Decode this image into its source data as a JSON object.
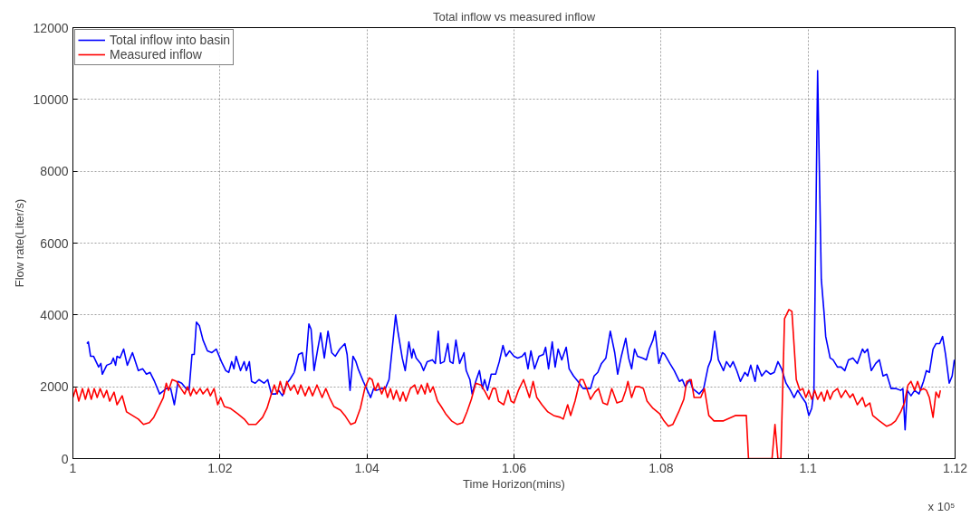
{
  "chart_data": {
    "type": "line",
    "title": "Total inflow vs measured inflow",
    "xlabel": "Time Horizon(mins)",
    "ylabel": "Flow rate(Liter/s)",
    "annotations": [
      "x 10⁵"
    ],
    "xlim": [
      1,
      1.12
    ],
    "xticks": [
      1,
      1.02,
      1.04,
      1.06,
      1.08,
      1.1,
      1.12
    ],
    "ylim": [
      0,
      12000
    ],
    "yticks": [
      0,
      2000,
      4000,
      6000,
      8000,
      10000,
      12000
    ],
    "grid": true,
    "legend": "top left",
    "line_style": "solid",
    "marker": "none",
    "series": [
      {
        "name": "Total inflow into basin",
        "color": "#0000ff",
        "x": [
          1.0019,
          1.0021,
          1.0024,
          1.0028,
          1.0035,
          1.0038,
          1.004,
          1.0046,
          1.0052,
          1.0055,
          1.0058,
          1.006,
          1.0064,
          1.0069,
          1.0074,
          1.0081,
          1.0089,
          1.0095,
          1.01,
          1.0105,
          1.0111,
          1.0118,
          1.0127,
          1.0133,
          1.0138,
          1.0143,
          1.0148,
          1.0154,
          1.0158,
          1.0162,
          1.0165,
          1.0168,
          1.0172,
          1.0177,
          1.0183,
          1.0189,
          1.0195,
          1.0202,
          1.0208,
          1.0212,
          1.0216,
          1.0219,
          1.0222,
          1.0228,
          1.0233,
          1.0236,
          1.024,
          1.0243,
          1.0248,
          1.0253,
          1.026,
          1.0265,
          1.027,
          1.0276,
          1.028,
          1.0285,
          1.0291,
          1.0295,
          1.0301,
          1.0307,
          1.0312,
          1.0316,
          1.0321,
          1.0324,
          1.0328,
          1.0333,
          1.0337,
          1.0342,
          1.0347,
          1.0352,
          1.0357,
          1.0363,
          1.037,
          1.0373,
          1.0377,
          1.0381,
          1.0385,
          1.0388,
          1.0395,
          1.0405,
          1.0409,
          1.0413,
          1.0419,
          1.0425,
          1.043,
          1.0435,
          1.0439,
          1.0442,
          1.0448,
          1.0452,
          1.0457,
          1.0461,
          1.0463,
          1.0467,
          1.0473,
          1.0477,
          1.0482,
          1.0489,
          1.0493,
          1.0497,
          1.05,
          1.0505,
          1.051,
          1.0513,
          1.0517,
          1.0521,
          1.0526,
          1.0532,
          1.0535,
          1.054,
          1.0543,
          1.0548,
          1.0553,
          1.0557,
          1.056,
          1.0564,
          1.0569,
          1.0575,
          1.058,
          1.0585,
          1.0589,
          1.0594,
          1.06,
          1.0605,
          1.0611,
          1.0615,
          1.0619,
          1.0623,
          1.0628,
          1.0634,
          1.064,
          1.0643,
          1.0647,
          1.0652,
          1.0656,
          1.066,
          1.0665,
          1.0671,
          1.0675,
          1.0681,
          1.0687,
          1.0694,
          1.0699,
          1.0704,
          1.0709,
          1.0714,
          1.0719,
          1.0725,
          1.0731,
          1.0737,
          1.0741,
          1.0746,
          1.0752,
          1.0756,
          1.076,
          1.0764,
          1.0768,
          1.0775,
          1.078,
          1.0784,
          1.0789,
          1.0792,
          1.0797,
          1.0802,
          1.0805,
          1.0812,
          1.0818,
          1.0825,
          1.0829,
          1.0833,
          1.0839,
          1.0843,
          1.0852,
          1.0858,
          1.0864,
          1.0868,
          1.0873,
          1.0878,
          1.0885,
          1.0889,
          1.0894,
          1.0898,
          1.0903,
          1.0908,
          1.0914,
          1.0918,
          1.0922,
          1.0928,
          1.0931,
          1.0937,
          1.0943,
          1.0949,
          1.0954,
          1.0959,
          1.0964,
          1.097,
          1.0976,
          1.0981,
          1.0986,
          1.0992,
          1.0997,
          1.1001,
          1.1005,
          1.1008,
          1.1013,
          1.1018,
          1.1022,
          1.1024,
          1.103,
          1.1034,
          1.104,
          1.1045,
          1.105,
          1.1055,
          1.1061,
          1.1067,
          1.1074,
          1.1077,
          1.1081,
          1.1086,
          1.1092,
          1.1097,
          1.1102,
          1.1107,
          1.1113,
          1.112,
          1.1126,
          1.1129,
          1.1132,
          1.1135,
          1.114,
          1.1145,
          1.1151,
          1.1157,
          1.1161,
          1.1165,
          1.117,
          1.1174,
          1.1179,
          1.1183,
          1.1187,
          1.1192,
          1.1196,
          1.1199
        ],
        "values": [
          3200,
          3250,
          2850,
          2850,
          2550,
          2650,
          2350,
          2600,
          2650,
          2800,
          2600,
          2850,
          2800,
          3050,
          2600,
          2950,
          2450,
          2500,
          2350,
          2400,
          2150,
          1800,
          1950,
          1950,
          1500,
          2150,
          2100,
          1950,
          1900,
          2900,
          2900,
          3800,
          3700,
          3300,
          3000,
          2950,
          3050,
          2700,
          2450,
          2400,
          2700,
          2500,
          2850,
          2450,
          2700,
          2450,
          2700,
          2150,
          2100,
          2200,
          2100,
          2200,
          1800,
          1800,
          1900,
          1750,
          2100,
          2200,
          2400,
          2900,
          2950,
          2450,
          3750,
          3600,
          2450,
          3050,
          3500,
          2800,
          3550,
          2950,
          2850,
          3050,
          3200,
          2900,
          1900,
          2850,
          2700,
          2500,
          2150,
          1700,
          1950,
          1900,
          1950,
          1950,
          2200,
          3200,
          4000,
          3550,
          2800,
          2450,
          3250,
          2800,
          3050,
          2800,
          2650,
          2450,
          2700,
          2750,
          2650,
          3550,
          2650,
          2700,
          3200,
          2700,
          2650,
          3300,
          2650,
          2950,
          2450,
          2200,
          1800,
          2150,
          2450,
          1950,
          2200,
          1900,
          2350,
          2350,
          2700,
          3150,
          2850,
          3000,
          2850,
          2800,
          2850,
          2950,
          2500,
          3000,
          2500,
          2850,
          2900,
          3100,
          2500,
          3250,
          2550,
          3050,
          2750,
          3100,
          2500,
          2300,
          2150,
          1950,
          1950,
          1950,
          2300,
          2400,
          2650,
          2800,
          3550,
          2950,
          2350,
          2850,
          3350,
          2800,
          2500,
          3050,
          2850,
          2800,
          2750,
          3050,
          3300,
          3550,
          2650,
          2950,
          2900,
          2650,
          2450,
          2150,
          2200,
          2000,
          2200,
          1950,
          1800,
          1950,
          2550,
          2750,
          3550,
          2750,
          2450,
          2700,
          2550,
          2700,
          2450,
          2150,
          2400,
          2300,
          2600,
          2150,
          2600,
          2300,
          2450,
          2350,
          2400,
          2700,
          2500,
          2100,
          1900,
          1700,
          1900,
          1700,
          1550,
          1200,
          1400,
          1900,
          10800,
          5000,
          4000,
          3400,
          2800,
          2750,
          2550,
          2550,
          2450,
          2750,
          2800,
          2650,
          3050,
          2950,
          3050,
          2450,
          2650,
          2750,
          2300,
          2350,
          1950,
          1950,
          1900,
          1950,
          800,
          1900,
          1750,
          1900,
          1800,
          2150,
          2450,
          2400,
          3050,
          3200,
          3200,
          3400,
          2900,
          2100,
          2300,
          2750
        ]
      },
      {
        "name": "Measured inflow",
        "color": "#ff0000",
        "x": [
          1,
          1.0004,
          1.0008,
          1.0013,
          1.0017,
          1.0021,
          1.0025,
          1.0029,
          1.0033,
          1.0037,
          1.0042,
          1.0046,
          1.005,
          1.0056,
          1.006,
          1.0067,
          1.0073,
          1.0081,
          1.0089,
          1.0096,
          1.0104,
          1.011,
          1.0116,
          1.0123,
          1.0127,
          1.013,
          1.0135,
          1.0141,
          1.0147,
          1.0152,
          1.0156,
          1.016,
          1.0164,
          1.0168,
          1.0173,
          1.0177,
          1.0183,
          1.0187,
          1.0192,
          1.0197,
          1.0201,
          1.0206,
          1.0214,
          1.0224,
          1.0233,
          1.0239,
          1.0249,
          1.0258,
          1.0264,
          1.027,
          1.0274,
          1.0278,
          1.0282,
          1.0287,
          1.0291,
          1.0296,
          1.0301,
          1.0306,
          1.031,
          1.0316,
          1.0321,
          1.0326,
          1.0332,
          1.0339,
          1.0344,
          1.0349,
          1.0355,
          1.0364,
          1.037,
          1.0378,
          1.0384,
          1.0391,
          1.0397,
          1.0403,
          1.0407,
          1.0411,
          1.0415,
          1.042,
          1.0424,
          1.0428,
          1.0432,
          1.0436,
          1.044,
          1.0445,
          1.0449,
          1.0453,
          1.0459,
          1.0465,
          1.0469,
          1.0474,
          1.0479,
          1.0482,
          1.0486,
          1.049,
          1.0496,
          1.0501,
          1.0507,
          1.0515,
          1.0523,
          1.053,
          1.0536,
          1.0542,
          1.0548,
          1.0555,
          1.0561,
          1.0566,
          1.0571,
          1.0575,
          1.0579,
          1.0586,
          1.0592,
          1.0596,
          1.06,
          1.0606,
          1.0613,
          1.0617,
          1.0621,
          1.0626,
          1.0631,
          1.0638,
          1.0646,
          1.0654,
          1.0663,
          1.0667,
          1.0673,
          1.0677,
          1.0683,
          1.069,
          1.0694,
          1.0699,
          1.0704,
          1.071,
          1.0715,
          1.0721,
          1.0727,
          1.0733,
          1.074,
          1.0747,
          1.0752,
          1.0755,
          1.076,
          1.0765,
          1.0771,
          1.0776,
          1.0781,
          1.0789,
          1.0798,
          1.0804,
          1.081,
          1.0816,
          1.0824,
          1.0831,
          1.0835,
          1.0841,
          1.0845,
          1.0854,
          1.0859,
          1.0865,
          1.0872,
          1.0885,
          1.0901,
          1.0916,
          1.0919,
          1.0951,
          1.0955,
          1.0959,
          1.0963,
          1.0968,
          1.0974,
          1.0978,
          1.0984,
          1.0989,
          1.0993,
          1.0997,
          1.1001,
          1.1005,
          1.1009,
          1.1013,
          1.1018,
          1.1022,
          1.1026,
          1.103,
          1.1034,
          1.104,
          1.1045,
          1.1051,
          1.1057,
          1.1061,
          1.1067,
          1.1074,
          1.1078,
          1.1084,
          1.1088,
          1.1097,
          1.1107,
          1.1113,
          1.1119,
          1.1126,
          1.1131,
          1.1136,
          1.114,
          1.1145,
          1.1149,
          1.1153,
          1.1157,
          1.1161,
          1.1165,
          1.117,
          1.1174,
          1.1178,
          1.118
        ],
        "values": [
          1700,
          1950,
          1600,
          1950,
          1650,
          1950,
          1650,
          1950,
          1700,
          1950,
          1700,
          1900,
          1600,
          1850,
          1500,
          1750,
          1300,
          1200,
          1100,
          950,
          1000,
          1150,
          1400,
          1700,
          2100,
          1900,
          2200,
          2150,
          1950,
          1800,
          2000,
          1750,
          1950,
          1800,
          1950,
          1800,
          1950,
          1750,
          1950,
          1500,
          1700,
          1450,
          1400,
          1250,
          1100,
          950,
          950,
          1150,
          1400,
          1800,
          2050,
          1800,
          2150,
          1800,
          2150,
          1900,
          2050,
          1800,
          2050,
          1750,
          2000,
          1750,
          2050,
          1700,
          1950,
          1700,
          1450,
          1350,
          1200,
          950,
          1000,
          1400,
          1950,
          2250,
          2200,
          1900,
          2100,
          1800,
          2000,
          1700,
          1950,
          1650,
          1900,
          1600,
          1850,
          1600,
          1950,
          2050,
          1800,
          2050,
          1800,
          2100,
          1850,
          2000,
          1600,
          1450,
          1250,
          1050,
          950,
          1000,
          1300,
          1650,
          2100,
          2050,
          1850,
          1650,
          1950,
          1950,
          1600,
          1500,
          1900,
          1600,
          1550,
          1900,
          2200,
          1950,
          1700,
          2150,
          1700,
          1500,
          1300,
          1200,
          1150,
          1100,
          1500,
          1200,
          1600,
          2200,
          2200,
          1950,
          1650,
          1850,
          1950,
          1550,
          1500,
          1950,
          1550,
          1600,
          1900,
          2150,
          1700,
          2000,
          2000,
          1950,
          1600,
          1400,
          1250,
          1050,
          900,
          950,
          1300,
          1650,
          2150,
          2200,
          1700,
          1700,
          1950,
          1200,
          1050,
          1050,
          1200,
          1200,
          0,
          0,
          950,
          0,
          0,
          3900,
          4150,
          4100,
          2200,
          1900,
          1950,
          1700,
          1900,
          1650,
          1900,
          1650,
          1850,
          1600,
          1900,
          1650,
          1850,
          1950,
          1700,
          1900,
          1700,
          1800,
          1500,
          1700,
          1450,
          1550,
          1200,
          1050,
          900,
          950,
          1050,
          1300,
          1550,
          2050,
          2150,
          1900,
          2150,
          1900,
          1950,
          1900,
          1700,
          1150,
          1850,
          1700,
          1900
        ]
      }
    ]
  }
}
